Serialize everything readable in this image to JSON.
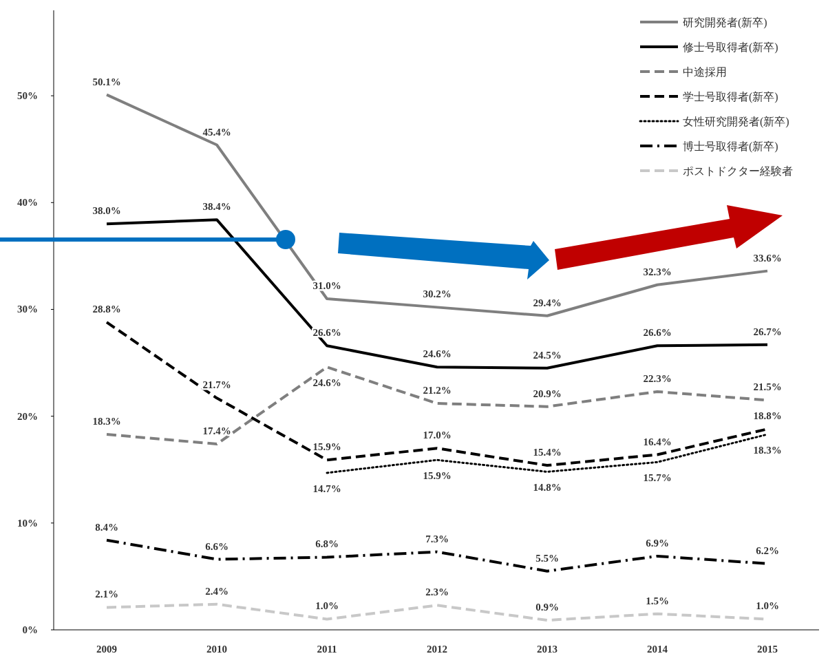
{
  "chart_data": {
    "type": "line",
    "categories": [
      "2009",
      "2010",
      "2011",
      "2012",
      "2013",
      "2014",
      "2015"
    ],
    "ylim": [
      0,
      58
    ],
    "yticks": [
      {
        "value": 0,
        "label": "0%"
      },
      {
        "value": 10,
        "label": "10%"
      },
      {
        "value": 20,
        "label": "20%"
      },
      {
        "value": 30,
        "label": "30%"
      },
      {
        "value": 40,
        "label": "40%"
      },
      {
        "value": 50,
        "label": "50%"
      }
    ],
    "grid": false,
    "legend": "top right",
    "marker": "none",
    "series": [
      {
        "name": "研究開発者(新卒)",
        "color": "#7f7f7f",
        "line_style": "solid",
        "values": [
          50.1,
          45.4,
          31.0,
          30.2,
          29.4,
          32.3,
          33.6
        ],
        "value_labels": [
          "50.1%",
          "45.4%",
          "31.0%",
          "30.2%",
          "29.4%",
          "32.3%",
          "33.6%"
        ]
      },
      {
        "name": "修士号取得者(新卒)",
        "color": "#000000",
        "line_style": "solid",
        "values": [
          38.0,
          38.4,
          26.6,
          24.6,
          24.5,
          26.6,
          26.7
        ],
        "value_labels": [
          "38.0%",
          "38.4%",
          "26.6%",
          "24.6%",
          "24.5%",
          "26.6%",
          "26.7%"
        ]
      },
      {
        "name": "中途採用",
        "color": "#7f7f7f",
        "line_style": "dashed",
        "values": [
          18.3,
          17.4,
          24.6,
          21.2,
          20.9,
          22.3,
          21.5
        ],
        "value_labels": [
          "18.3%",
          "17.4%",
          "24.6%",
          "21.2%",
          "20.9%",
          "22.3%",
          "21.5%"
        ]
      },
      {
        "name": "学士号取得者(新卒)",
        "color": "#000000",
        "line_style": "dashed",
        "values": [
          28.8,
          21.7,
          15.9,
          17.0,
          15.4,
          16.4,
          18.8
        ],
        "value_labels": [
          "28.8%",
          "21.7%",
          "15.9%",
          "17.0%",
          "15.4%",
          "16.4%",
          "18.8%"
        ]
      },
      {
        "name": "女性研究開発者(新卒)",
        "color": "#000000",
        "line_style": "dotted",
        "values": [
          null,
          null,
          14.7,
          15.9,
          14.8,
          15.7,
          18.3
        ],
        "value_labels": [
          null,
          null,
          "14.7%",
          "15.9%",
          "14.8%",
          "15.7%",
          "18.3%"
        ]
      },
      {
        "name": "博士号取得者(新卒)",
        "color": "#000000",
        "line_style": "dashdot",
        "values": [
          8.4,
          6.6,
          6.8,
          7.3,
          5.5,
          6.9,
          6.2
        ],
        "value_labels": [
          "8.4%",
          "6.6%",
          "6.8%",
          "7.3%",
          "5.5%",
          "6.9%",
          "6.2%"
        ]
      },
      {
        "name": "ポストドクター経験者",
        "color": "#c8c8c8",
        "line_style": "dashed",
        "values": [
          2.1,
          2.4,
          1.0,
          2.3,
          0.9,
          1.5,
          1.0
        ],
        "value_labels": [
          "2.1%",
          "2.4%",
          "1.0%",
          "2.3%",
          "0.9%",
          "1.5%",
          "1.0%"
        ]
      }
    ]
  }
}
